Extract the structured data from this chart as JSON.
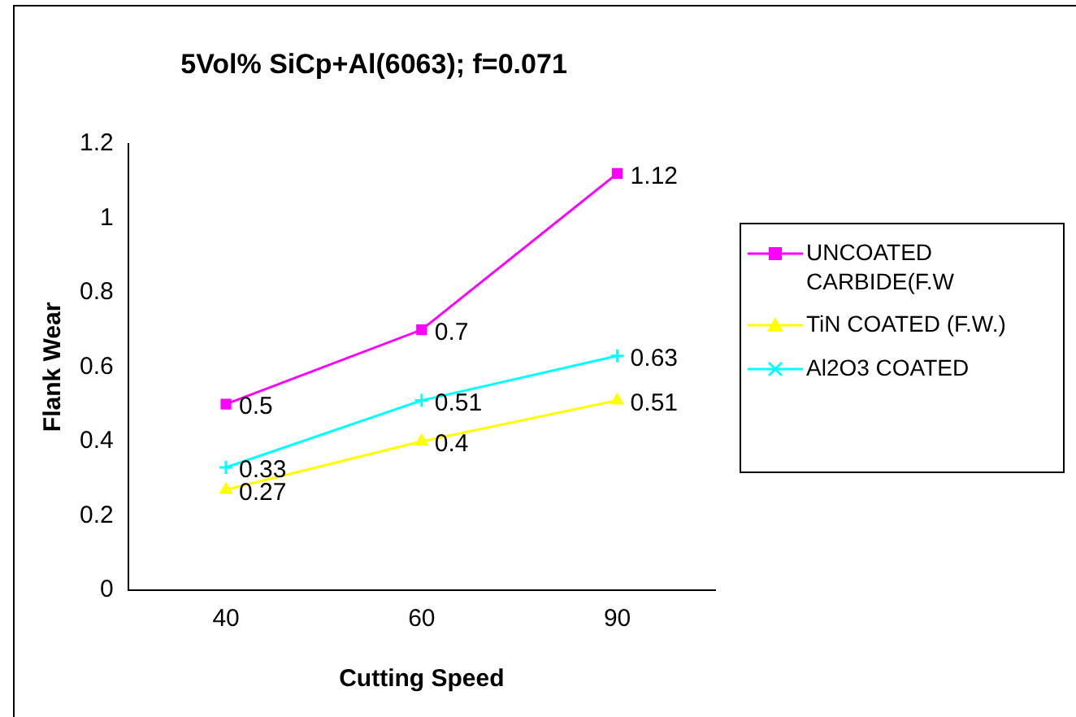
{
  "chart_data": {
    "type": "line",
    "title": "5Vol% SiCp+Al(6063); f=0.071",
    "xlabel": "Cutting Speed",
    "ylabel": "Flank Wear",
    "categories": [
      "40",
      "60",
      "90"
    ],
    "series": [
      {
        "name": "UNCOATED CARBIDE(F.W",
        "color": "#ff00ff",
        "marker": "square",
        "values": [
          0.5,
          0.7,
          1.12
        ]
      },
      {
        "name": "TiN COATED (F.W.)",
        "color": "#ffff00",
        "marker": "triangle",
        "values": [
          0.27,
          0.4,
          0.51
        ]
      },
      {
        "name": "Al2O3 COATED",
        "color": "#00ffff",
        "marker": "cross",
        "values": [
          0.33,
          0.51,
          0.63
        ]
      }
    ],
    "ylim": [
      0,
      1.2
    ],
    "yticks": [
      0,
      0.2,
      0.4,
      0.6,
      0.8,
      1,
      1.2
    ],
    "grid": false,
    "legend": "right",
    "data_labels": true,
    "line_style": "solid"
  }
}
